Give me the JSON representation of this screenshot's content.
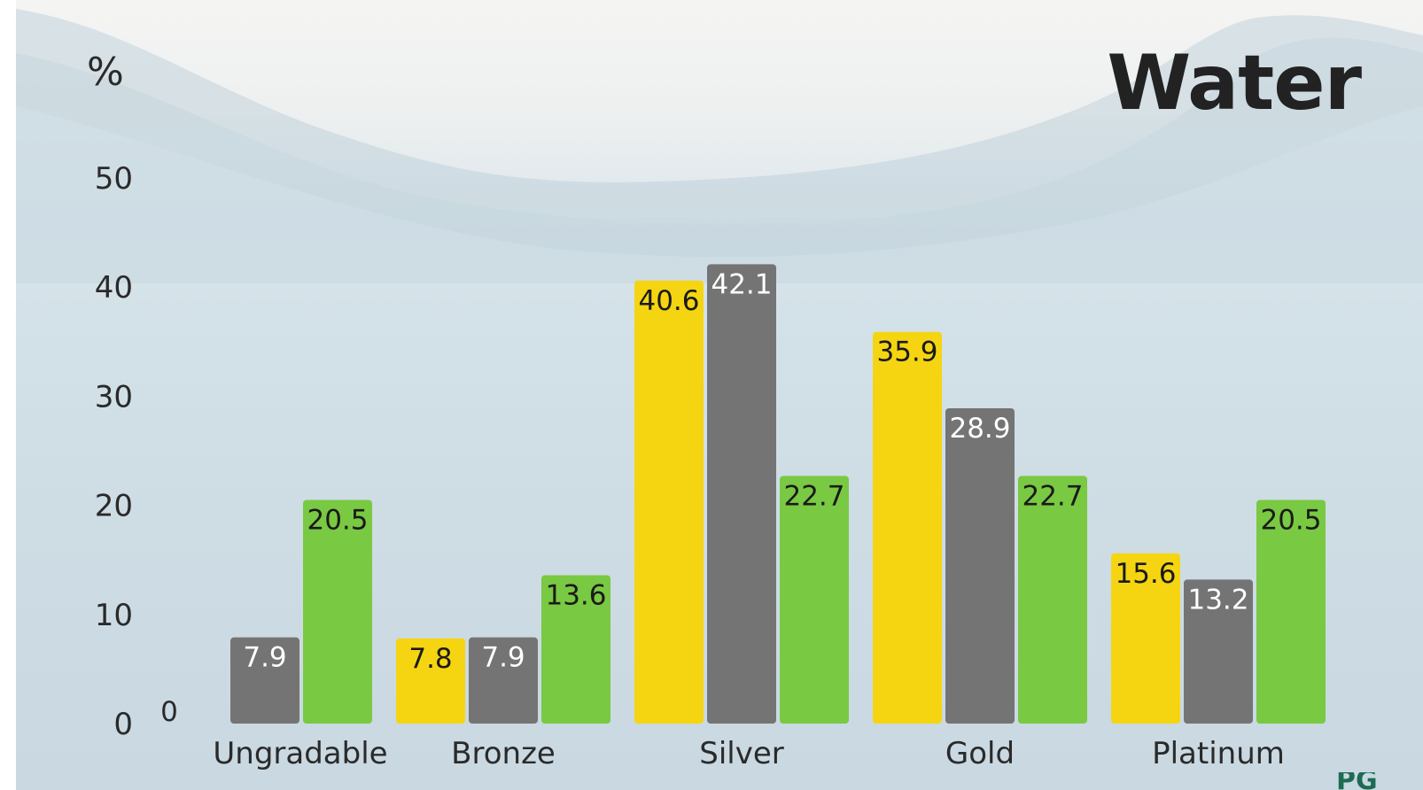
{
  "chart_data": {
    "type": "bar",
    "title": "Water",
    "ylabel": "%",
    "ylim": [
      0,
      55
    ],
    "yticks": [
      "0",
      "10",
      "20",
      "30",
      "40",
      "50"
    ],
    "categories": [
      "Ungradable",
      "Bronze",
      "Silver",
      "Gold",
      "Platinum"
    ],
    "series": [
      {
        "values": [
          0,
          7.8,
          40.6,
          35.9,
          15.6
        ],
        "labels": [
          "0",
          "7.8",
          "40.6",
          "35.9",
          "15.6"
        ],
        "color": "#f5d511",
        "label_color": "#1a1a1a"
      },
      {
        "values": [
          7.9,
          7.9,
          42.1,
          28.9,
          13.2
        ],
        "labels": [
          "7.9",
          "7.9",
          "42.1",
          "28.9",
          "13.2"
        ],
        "color": "#747474",
        "label_color": "#ffffff"
      },
      {
        "values": [
          20.5,
          13.6,
          22.7,
          22.7,
          20.5
        ],
        "labels": [
          "20.5",
          "13.6",
          "22.7",
          "22.7",
          "20.5"
        ],
        "color": "#79c942",
        "label_color": "#1a1a1a"
      }
    ],
    "grid": false,
    "legend": "none"
  }
}
